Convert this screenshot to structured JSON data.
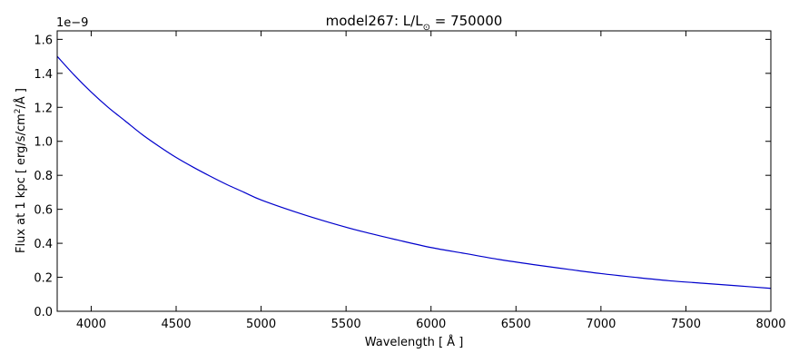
{
  "chart_data": {
    "type": "line",
    "title_prefix": "model267: L/L",
    "title_subscript": "⊙",
    "title_suffix": " = 750000",
    "xlabel": "Wavelength [ Å ]",
    "ylabel_main": "Flux at 1 kpc [ erg/s/cm",
    "ylabel_sup": "2",
    "ylabel_tail": "/Å ]",
    "y_offset_label": "1e−9",
    "xlim": [
      3800,
      8000
    ],
    "ylim": [
      0.0,
      1.65
    ],
    "x_ticks": [
      4000,
      4500,
      5000,
      5500,
      6000,
      6500,
      7000,
      7500,
      8000
    ],
    "x_tick_labels": [
      "4000",
      "4500",
      "5000",
      "5500",
      "6000",
      "6500",
      "7000",
      "7500",
      "8000"
    ],
    "y_ticks": [
      0.0,
      0.2,
      0.4,
      0.6,
      0.8,
      1.0,
      1.2,
      1.4,
      1.6
    ],
    "y_tick_labels": [
      "0.0",
      "0.2",
      "0.4",
      "0.6",
      "0.8",
      "1.0",
      "1.2",
      "1.4",
      "1.6"
    ],
    "grid": false,
    "series": [
      {
        "color": "#0000cc",
        "x": [
          3800,
          3900,
          4000,
          4100,
          4200,
          4300,
          4400,
          4500,
          4600,
          4700,
          4800,
          4900,
          5000,
          5200,
          5400,
          5600,
          5800,
          6000,
          6200,
          6400,
          6600,
          6800,
          7000,
          7200,
          7400,
          7600,
          7800,
          8000
        ],
        "y": [
          1.5,
          1.39,
          1.29,
          1.2,
          1.12,
          1.04,
          0.97,
          0.905,
          0.848,
          0.795,
          0.745,
          0.7,
          0.655,
          0.585,
          0.523,
          0.468,
          0.42,
          0.375,
          0.34,
          0.305,
          0.275,
          0.248,
          0.222,
          0.2,
          0.18,
          0.165,
          0.15,
          0.135
        ]
      }
    ]
  }
}
